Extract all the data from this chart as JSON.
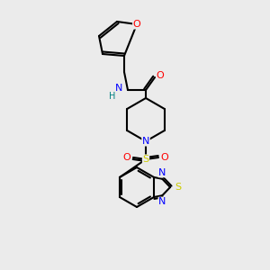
{
  "bg_color": "#ebebeb",
  "bond_color": "#000000",
  "atom_colors": {
    "O": "#ff0000",
    "N": "#0000ff",
    "S_thiad": "#cccc00",
    "S_sulfonyl": "#cccc00",
    "H": "#008080",
    "C": "#000000"
  },
  "figsize": [
    3.0,
    3.0
  ],
  "dpi": 100,
  "lw": 1.5,
  "fontsize": 7.5
}
